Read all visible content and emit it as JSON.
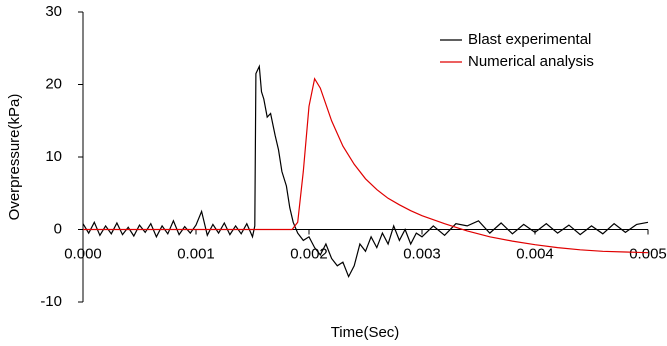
{
  "chart_data": {
    "type": "line",
    "x_label": "Time(Sec)",
    "y_label": "Overpressure(kPa)",
    "xlim": [
      0,
      0.005
    ],
    "ylim": [
      -10,
      30
    ],
    "xticks": [
      {
        "value": 0,
        "label": "0.000"
      },
      {
        "value": 0.001,
        "label": "0.001"
      },
      {
        "value": 0.002,
        "label": "0.002"
      },
      {
        "value": 0.003,
        "label": "0.003"
      },
      {
        "value": 0.004,
        "label": "0.004"
      },
      {
        "value": 0.005,
        "label": "0.005"
      }
    ],
    "yticks": [
      -10,
      0,
      10,
      20,
      30
    ],
    "legend": "upper right",
    "series": [
      {
        "name": "Blast experimental",
        "color": "#000000",
        "x": [
          0,
          5e-05,
          0.0001,
          0.00015,
          0.0002,
          0.00025,
          0.0003,
          0.00035,
          0.0004,
          0.00045,
          0.0005,
          0.00055,
          0.0006,
          0.00065,
          0.0007,
          0.00075,
          0.0008,
          0.00085,
          0.0009,
          0.00095,
          0.001,
          0.00105,
          0.0011,
          0.00115,
          0.0012,
          0.00125,
          0.0013,
          0.00135,
          0.0014,
          0.00145,
          0.0015,
          0.00152,
          0.00153,
          0.00156,
          0.00158,
          0.0016,
          0.00163,
          0.00166,
          0.0017,
          0.00173,
          0.00176,
          0.0018,
          0.00183,
          0.00186,
          0.0019,
          0.00195,
          0.002,
          0.00205,
          0.0021,
          0.00215,
          0.0022,
          0.00225,
          0.0023,
          0.00235,
          0.0024,
          0.00245,
          0.0025,
          0.00255,
          0.0026,
          0.00265,
          0.0027,
          0.00275,
          0.0028,
          0.00285,
          0.0029,
          0.00295,
          0.003,
          0.0031,
          0.0032,
          0.0033,
          0.0034,
          0.0035,
          0.0036,
          0.0037,
          0.0038,
          0.0039,
          0.004,
          0.0041,
          0.0042,
          0.0043,
          0.0044,
          0.0045,
          0.0046,
          0.0047,
          0.0048,
          0.0049,
          0.005
        ],
        "values": [
          0.8,
          -0.5,
          1.0,
          -0.8,
          0.5,
          -0.6,
          0.9,
          -0.7,
          0.3,
          -0.9,
          0.6,
          -0.4,
          0.8,
          -1.0,
          0.5,
          -0.6,
          1.2,
          -0.7,
          0.4,
          -0.5,
          0.6,
          2.5,
          -0.8,
          0.7,
          -0.5,
          0.9,
          -0.7,
          0.5,
          -0.6,
          0.8,
          -1.0,
          0.5,
          21.5,
          22.5,
          19,
          18,
          15.5,
          16,
          13,
          11,
          8,
          6,
          3,
          1,
          -0.5,
          -1.5,
          -1,
          -2.5,
          -3.5,
          -2,
          -4,
          -5,
          -4.5,
          -6.5,
          -5,
          -2,
          -3,
          -1,
          -2.5,
          -0.5,
          -2,
          0.5,
          -1.5,
          0,
          -2,
          -0.5,
          -1,
          0.5,
          -0.8,
          0.8,
          0.5,
          1.2,
          -0.5,
          0.9,
          -0.6,
          0.7,
          -0.4,
          0.8,
          -0.5,
          0.6,
          -0.7,
          0.5,
          -0.6,
          0.8,
          -0.4,
          0.7,
          1.0
        ]
      },
      {
        "name": "Numerical analysis",
        "color": "#e00000",
        "x": [
          0,
          0.001,
          0.00185,
          0.0019,
          0.00195,
          0.002,
          0.00205,
          0.0021,
          0.0022,
          0.0023,
          0.0024,
          0.0025,
          0.0026,
          0.0027,
          0.0028,
          0.0029,
          0.003,
          0.0032,
          0.0034,
          0.0036,
          0.0038,
          0.004,
          0.0042,
          0.0044,
          0.0046,
          0.0048,
          0.005
        ],
        "values": [
          0,
          0,
          0,
          1,
          8,
          17,
          20.8,
          19.5,
          15,
          11.5,
          9,
          7,
          5.5,
          4.3,
          3.4,
          2.6,
          1.9,
          0.8,
          -0.2,
          -1.0,
          -1.6,
          -2.1,
          -2.5,
          -2.8,
          -3.0,
          -3.1,
          -3.2
        ]
      }
    ]
  }
}
